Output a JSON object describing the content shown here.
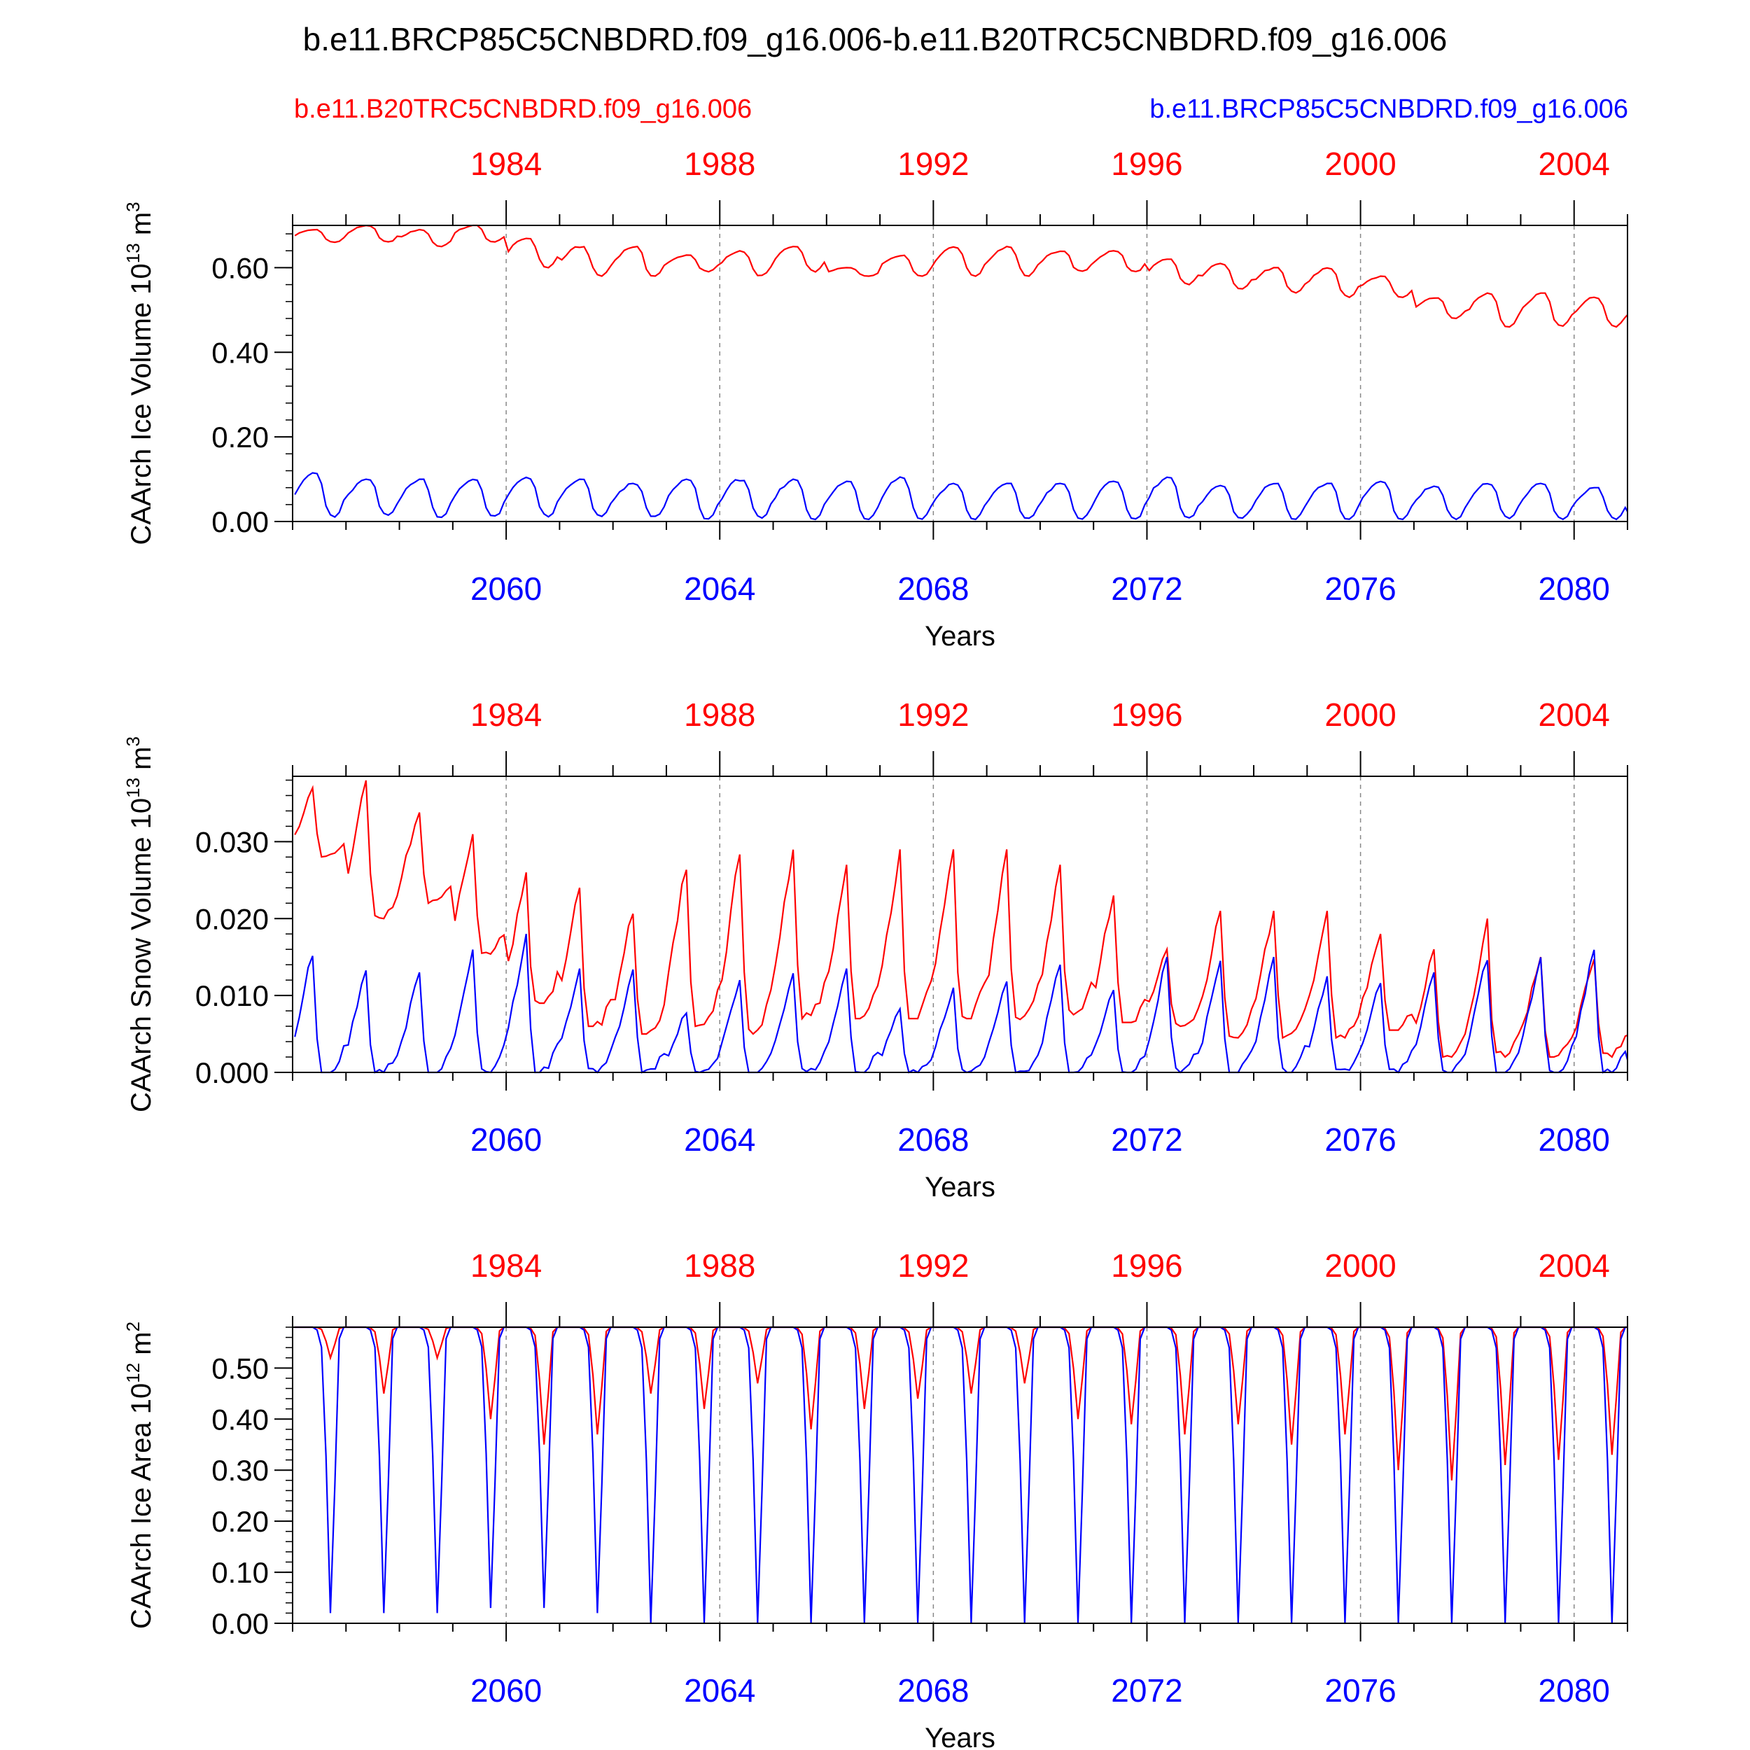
{
  "figure": {
    "title": "b.e11.BRCP85C5CNBDRD.f09_g16.006-b.e11.B20TRC5CNBDRD.f09_g16.006",
    "legend_red": "b.e11.B20TRC5CNBDRD.f09_g16.006",
    "legend_blue": "b.e11.BRCP85C5CNBDRD.f09_g16.006"
  },
  "colors": {
    "red": "#ff0000",
    "blue": "#0000ff",
    "axis": "#000000",
    "grid": "#888888"
  },
  "chart_data": [
    {
      "type": "line",
      "ylabel": "CAArch Ice Volume",
      "ylabel_exp": "13",
      "ylabel_unit": "m",
      "ylabel_unit_exp": "3",
      "xlabel": "Years",
      "ylim": [
        0.0,
        0.7
      ],
      "yticks": [
        0.0,
        0.2,
        0.4,
        0.6
      ],
      "ytick_labels": [
        "0.00",
        "0.20",
        "0.40",
        "0.60"
      ],
      "yminor": 0.04,
      "bottom_axis": {
        "range": [
          2056,
          2081
        ],
        "ticks": [
          2060,
          2064,
          2068,
          2072,
          2076,
          2080
        ],
        "labels": [
          "2060",
          "2064",
          "2068",
          "2072",
          "2076",
          "2080"
        ]
      },
      "top_axis": {
        "range": [
          1980,
          2005
        ],
        "ticks": [
          1984,
          1988,
          1992,
          1996,
          2000,
          2004
        ],
        "labels": [
          "1984",
          "1988",
          "1992",
          "1996",
          "2000",
          "2004"
        ]
      },
      "series": [
        {
          "name": "b.e11.B20TRC5CNBDRD.f09_g16.006",
          "color": "red",
          "start": 1980,
          "generator": "red",
          "annual_min": [
            0.66,
            0.66,
            0.65,
            0.66,
            0.6,
            0.58,
            0.58,
            0.59,
            0.58,
            0.59,
            0.58,
            0.58,
            0.58,
            0.58,
            0.59,
            0.59,
            0.56,
            0.55,
            0.54,
            0.53,
            0.53,
            0.48,
            0.46,
            0.46,
            0.46,
            0.45
          ],
          "annual_max": [
            0.69,
            0.7,
            0.69,
            0.7,
            0.67,
            0.65,
            0.65,
            0.63,
            0.64,
            0.65,
            0.6,
            0.63,
            0.65,
            0.65,
            0.64,
            0.64,
            0.62,
            0.61,
            0.6,
            0.6,
            0.58,
            0.53,
            0.54,
            0.54,
            0.53,
            0.53
          ],
          "shape": "volume"
        },
        {
          "name": "b.e11.BRCP85C5CNBDRD.f09_g16.006",
          "color": "blue",
          "start": 2056,
          "generator": "blue",
          "annual_min": [
            0.01,
            0.015,
            0.01,
            0.01,
            0.01,
            0.01,
            0.01,
            0.005,
            0.005,
            0.005,
            0.005,
            0.005,
            0.005,
            0.005,
            0.005,
            0.005,
            0.005,
            0.005,
            0.005,
            0.005,
            0.005,
            0.005,
            0.005,
            0.005,
            0.005,
            0.005
          ],
          "annual_max": [
            0.115,
            0.1,
            0.1,
            0.1,
            0.105,
            0.1,
            0.09,
            0.1,
            0.1,
            0.1,
            0.095,
            0.105,
            0.09,
            0.09,
            0.09,
            0.095,
            0.105,
            0.085,
            0.09,
            0.09,
            0.095,
            0.085,
            0.09,
            0.09,
            0.08,
            0.02
          ],
          "shape": "volume"
        }
      ]
    },
    {
      "type": "line",
      "ylabel": "CAArch Snow Volume",
      "ylabel_exp": "13",
      "ylabel_unit": "m",
      "ylabel_unit_exp": "3",
      "xlabel": "Years",
      "ylim": [
        0.0,
        0.0385
      ],
      "yticks": [
        0.0,
        0.01,
        0.02,
        0.03
      ],
      "ytick_labels": [
        "0.000",
        "0.010",
        "0.020",
        "0.030"
      ],
      "yminor": 0.002,
      "bottom_axis": {
        "range": [
          2056,
          2081
        ],
        "ticks": [
          2060,
          2064,
          2068,
          2072,
          2076,
          2080
        ],
        "labels": [
          "2060",
          "2064",
          "2068",
          "2072",
          "2076",
          "2080"
        ]
      },
      "top_axis": {
        "range": [
          1980,
          2005
        ],
        "ticks": [
          1984,
          1988,
          1992,
          1996,
          2000,
          2004
        ],
        "labels": [
          "1984",
          "1988",
          "1992",
          "1996",
          "2000",
          "2004"
        ]
      },
      "series": [
        {
          "name": "b.e11.B20TRC5CNBDRD.f09_g16.006",
          "color": "red",
          "start": 1980,
          "annual_min": [
            0.028,
            0.02,
            0.022,
            0.015,
            0.009,
            0.006,
            0.005,
            0.006,
            0.005,
            0.007,
            0.007,
            0.007,
            0.007,
            0.0065,
            0.0075,
            0.0065,
            0.006,
            0.0045,
            0.0045,
            0.0045,
            0.0055,
            0.002,
            0.002,
            0.002,
            0.002,
            0.002
          ],
          "annual_max": [
            0.037,
            0.038,
            0.034,
            0.031,
            0.026,
            0.024,
            0.021,
            0.027,
            0.029,
            0.029,
            0.027,
            0.029,
            0.029,
            0.029,
            0.027,
            0.023,
            0.016,
            0.021,
            0.021,
            0.021,
            0.018,
            0.016,
            0.02,
            0.015,
            0.015,
            0.011
          ],
          "shape": "snow"
        },
        {
          "name": "b.e11.BRCP85C5CNBDRD.f09_g16.006",
          "color": "blue",
          "start": 2056,
          "annual_min": [
            0.0,
            0.0,
            0.0,
            0.0,
            0.0,
            0.0,
            0.0,
            0.0,
            0.0,
            0.0,
            0.0,
            0.0,
            0.0,
            0.0,
            0.0,
            0.0,
            0.0,
            0.0,
            0.0,
            0.0,
            0.0,
            0.0,
            0.0,
            0.0,
            0.0,
            0.0
          ],
          "annual_max": [
            0.0155,
            0.0135,
            0.013,
            0.016,
            0.018,
            0.0135,
            0.0135,
            0.008,
            0.012,
            0.013,
            0.0135,
            0.0085,
            0.011,
            0.012,
            0.014,
            0.011,
            0.015,
            0.0145,
            0.015,
            0.0125,
            0.012,
            0.013,
            0.015,
            0.015,
            0.016,
            0.002
          ],
          "shape": "snow"
        }
      ]
    },
    {
      "type": "line",
      "ylabel": "CAArch Ice Area",
      "ylabel_exp": "12",
      "ylabel_unit": "m",
      "ylabel_unit_exp": "2",
      "xlabel": "Years",
      "ylim": [
        0.0,
        0.58
      ],
      "yticks": [
        0.0,
        0.1,
        0.2,
        0.3,
        0.4,
        0.5
      ],
      "ytick_labels": [
        "0.00",
        "0.10",
        "0.20",
        "0.30",
        "0.40",
        "0.50"
      ],
      "yminor": 0.02,
      "bottom_axis": {
        "range": [
          2056,
          2081
        ],
        "ticks": [
          2060,
          2064,
          2068,
          2072,
          2076,
          2080
        ],
        "labels": [
          "2060",
          "2064",
          "2068",
          "2072",
          "2076",
          "2080"
        ]
      },
      "top_axis": {
        "range": [
          1980,
          2005
        ],
        "ticks": [
          1984,
          1988,
          1992,
          1996,
          2000,
          2004
        ],
        "labels": [
          "1984",
          "1988",
          "1992",
          "1996",
          "2000",
          "2004"
        ]
      },
      "series": [
        {
          "name": "b.e11.B20TRC5CNBDRD.f09_g16.006",
          "color": "red",
          "start": 1980,
          "annual_min": [
            0.52,
            0.45,
            0.52,
            0.4,
            0.35,
            0.37,
            0.45,
            0.42,
            0.47,
            0.38,
            0.42,
            0.44,
            0.45,
            0.47,
            0.4,
            0.39,
            0.37,
            0.39,
            0.35,
            0.37,
            0.3,
            0.28,
            0.31,
            0.32,
            0.33,
            0.5
          ],
          "annual_max": [
            0.58,
            0.58,
            0.58,
            0.58,
            0.58,
            0.58,
            0.58,
            0.58,
            0.58,
            0.58,
            0.58,
            0.58,
            0.58,
            0.58,
            0.58,
            0.58,
            0.58,
            0.58,
            0.58,
            0.58,
            0.58,
            0.58,
            0.58,
            0.58,
            0.58,
            0.58
          ],
          "shape": "area"
        },
        {
          "name": "b.e11.BRCP85C5CNBDRD.f09_g16.006",
          "color": "blue",
          "start": 2056,
          "annual_min": [
            0.02,
            0.02,
            0.02,
            0.03,
            0.03,
            0.02,
            0.0,
            0.0,
            0.0,
            0.0,
            0.0,
            0.0,
            0.0,
            0.0,
            0.0,
            0.0,
            0.0,
            0.0,
            0.0,
            0.0,
            0.0,
            0.0,
            0.0,
            0.0,
            0.0,
            0.5
          ],
          "annual_max": [
            0.58,
            0.58,
            0.58,
            0.58,
            0.58,
            0.58,
            0.58,
            0.58,
            0.58,
            0.58,
            0.58,
            0.58,
            0.58,
            0.58,
            0.58,
            0.58,
            0.58,
            0.58,
            0.58,
            0.58,
            0.58,
            0.58,
            0.58,
            0.58,
            0.58,
            0.58
          ],
          "shape": "area"
        }
      ]
    }
  ]
}
